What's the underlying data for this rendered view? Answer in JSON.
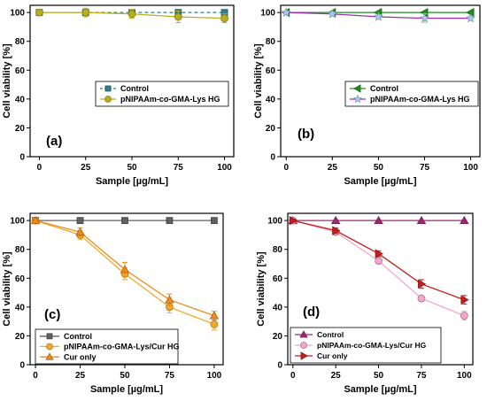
{
  "colors": {
    "control_a": "#2e7f8a",
    "hg_a": "#b9ae1c",
    "control_b": "#1e8f1e",
    "hg_b": "#a8c8f0",
    "hg_b_line": "#9c2fb5",
    "control_c": "#606060",
    "hg_c": "#f2a928",
    "cur_c": "#f08a1a",
    "control_d": "#a0286e",
    "hg_d": "#f4a6c8",
    "cur_d": "#c41e1e"
  },
  "chart_data": [
    {
      "panel": "(a)",
      "type": "line",
      "xlabel": "Sample [µg/mL]",
      "ylabel": "Cell viability [%]",
      "xlim": [
        -5,
        105
      ],
      "ylim": [
        0,
        105
      ],
      "xticks": [
        0,
        25,
        50,
        75,
        100
      ],
      "yticks": [
        0,
        20,
        40,
        60,
        80,
        100
      ],
      "x": [
        0,
        25,
        50,
        75,
        100
      ],
      "legend_position": "center-right",
      "series": [
        {
          "name": "Control",
          "values": [
            100,
            100,
            100,
            100,
            100
          ],
          "errors": [
            0,
            0,
            0,
            0,
            0
          ],
          "marker": "square",
          "color_key": "control_a",
          "line_color_key": "control_a",
          "dashed": true
        },
        {
          "name": "pNIPAAm-co-GMA-Lys HG",
          "values": [
            100,
            100,
            99,
            97,
            96
          ],
          "errors": [
            1,
            3,
            3,
            4,
            3
          ],
          "marker": "circle",
          "color_key": "hg_a",
          "line_color_key": "hg_a",
          "dashed": false
        }
      ]
    },
    {
      "panel": "(b)",
      "type": "line",
      "xlabel": "Sample [µg/mL]",
      "ylabel": "Cell viability [%]",
      "xlim": [
        -3,
        105
      ],
      "ylim": [
        0,
        105
      ],
      "xticks": [
        0,
        25,
        50,
        75,
        100
      ],
      "yticks": [
        0,
        20,
        40,
        60,
        80,
        100
      ],
      "x": [
        0,
        25,
        50,
        75,
        100
      ],
      "legend_position": "center-right",
      "series": [
        {
          "name": "Control",
          "values": [
            100,
            100,
            100,
            100,
            100
          ],
          "errors": [
            0,
            0,
            0,
            0,
            0
          ],
          "marker": "triangle-left",
          "color_key": "control_b",
          "line_color_key": "control_b",
          "dashed": false
        },
        {
          "name": "pNIPAAm-co-GMA-Lys HG",
          "values": [
            100,
            99,
            97,
            96,
            96
          ],
          "errors": [
            0.5,
            1.5,
            1.5,
            3,
            1.5
          ],
          "marker": "star",
          "color_key": "hg_b",
          "line_color_key": "hg_b_line",
          "dashed": false
        }
      ]
    },
    {
      "panel": "(c)",
      "type": "line",
      "xlabel": "Sample [µg/mL]",
      "ylabel": "Cell viability [%]",
      "xlim": [
        -3,
        105
      ],
      "ylim": [
        0,
        105
      ],
      "xticks": [
        0,
        25,
        50,
        75,
        100
      ],
      "yticks": [
        0,
        20,
        40,
        60,
        80,
        100
      ],
      "x": [
        0,
        25,
        50,
        75,
        100
      ],
      "legend_position": "bottom-left",
      "series": [
        {
          "name": "Control",
          "values": [
            100,
            100,
            100,
            100,
            100
          ],
          "errors": [
            0,
            0,
            0,
            0,
            0
          ],
          "marker": "square",
          "color_key": "control_c",
          "line_color_key": "control_c",
          "dashed": false
        },
        {
          "name": "pNIPAAm-co-GMA-Lys/Cur HG",
          "values": [
            100,
            90,
            63,
            40,
            28
          ],
          "errors": [
            1,
            3,
            4,
            4,
            4
          ],
          "marker": "circle",
          "color_key": "hg_c",
          "line_color_key": "hg_c",
          "dashed": false
        },
        {
          "name": "Cur only",
          "values": [
            100,
            92,
            66,
            45,
            34
          ],
          "errors": [
            1,
            3,
            5,
            4,
            3
          ],
          "marker": "triangle-up",
          "color_key": "cur_c",
          "line_color_key": "cur_c",
          "dashed": false
        }
      ]
    },
    {
      "panel": "(d)",
      "type": "line",
      "xlabel": "Sample [µg/mL]",
      "ylabel": "Cell viability [%]",
      "xlim": [
        -3,
        105
      ],
      "ylim": [
        0,
        105
      ],
      "xticks": [
        0,
        25,
        50,
        75,
        100
      ],
      "yticks": [
        0,
        20,
        40,
        60,
        80,
        100
      ],
      "x": [
        0,
        25,
        50,
        75,
        100
      ],
      "legend_position": "bottom-left",
      "series": [
        {
          "name": "Control",
          "values": [
            100,
            100,
            100,
            100,
            100
          ],
          "errors": [
            0,
            0,
            0,
            0,
            0
          ],
          "marker": "triangle-up",
          "color_key": "control_d",
          "line_color_key": "control_d",
          "dashed": false
        },
        {
          "name": "pNIPAAm-co-GMA-Lys/Cur HG",
          "values": [
            100,
            92,
            72,
            46,
            34
          ],
          "errors": [
            1,
            2,
            2,
            2,
            3
          ],
          "marker": "circle",
          "color_key": "hg_d",
          "line_color_key": "hg_d",
          "dashed": false
        },
        {
          "name": "Cur only",
          "values": [
            100,
            93,
            77,
            56,
            45
          ],
          "errors": [
            1,
            2,
            2,
            3,
            3
          ],
          "marker": "triangle-right",
          "color_key": "cur_d",
          "line_color_key": "cur_d",
          "dashed": false
        }
      ]
    }
  ]
}
